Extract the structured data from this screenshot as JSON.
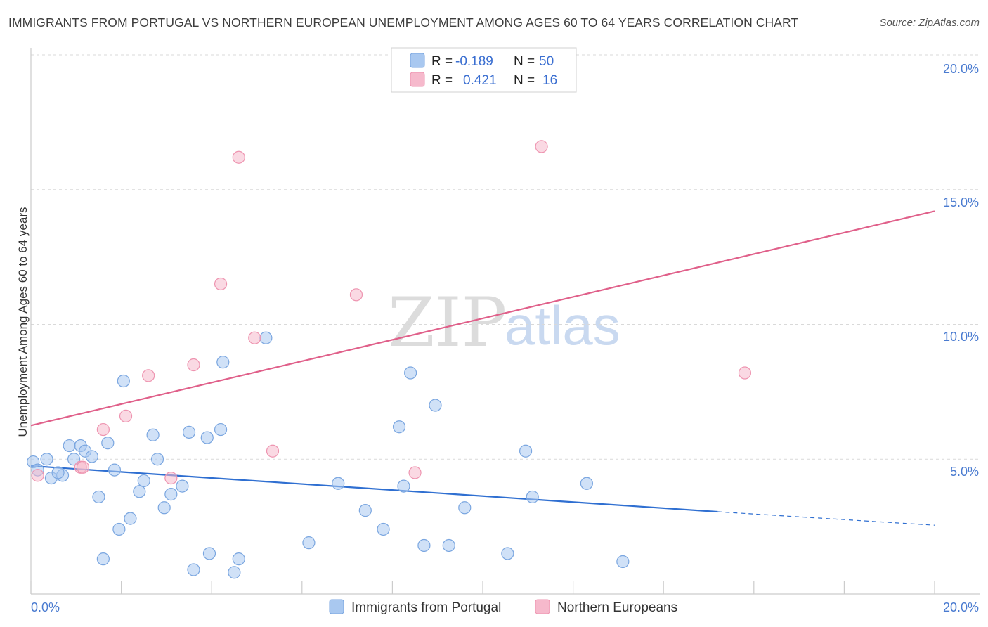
{
  "title": "IMMIGRANTS FROM PORTUGAL VS NORTHERN EUROPEAN UNEMPLOYMENT AMONG AGES 60 TO 64 YEARS CORRELATION CHART",
  "source": "Source: ZipAtlas.com",
  "watermark": {
    "part1": "ZIP",
    "part2": "atlas"
  },
  "colors": {
    "blue_fill": "#a9c8f0",
    "blue_stroke": "#7aa6e0",
    "blue_line": "#2f6fd1",
    "pink_fill": "#f6b9cc",
    "pink_stroke": "#ee94b0",
    "pink_line": "#e0608a",
    "axis_text": "#4a7bd0",
    "grid": "#d9d9d9"
  },
  "legend": {
    "rows": [
      {
        "r_label": "R =",
        "r_value": "-0.189",
        "n_label": "N =",
        "n_value": "50",
        "series": "blue"
      },
      {
        "r_label": "R =",
        "r_value": "0.421",
        "n_label": "N =",
        "n_value": "16",
        "series": "pink"
      }
    ]
  },
  "bottom_legend": [
    "Immigrants from Portugal",
    "Northern Europeans"
  ],
  "chart_data": {
    "type": "scatter",
    "title": "IMMIGRANTS FROM PORTUGAL VS NORTHERN EUROPEAN UNEMPLOYMENT AMONG AGES 60 TO 64 YEARS CORRELATION CHART",
    "xlabel": "",
    "ylabel": "Unemployment Among Ages 60 to 64 years",
    "xlim": [
      0,
      20
    ],
    "ylim": [
      0,
      20
    ],
    "x_tick_labels": [
      "0.0%",
      "20.0%"
    ],
    "y_tick_labels": [
      "5.0%",
      "10.0%",
      "15.0%",
      "20.0%"
    ],
    "y_ticks": [
      5,
      10,
      15,
      20
    ],
    "grid": true,
    "legend_position": "top-center",
    "series": [
      {
        "name": "Immigrants from Portugal",
        "color": "#a9c8f0",
        "points": [
          [
            0.05,
            4.9
          ],
          [
            0.15,
            4.6
          ],
          [
            0.35,
            5.0
          ],
          [
            0.45,
            4.3
          ],
          [
            0.7,
            4.4
          ],
          [
            0.85,
            5.5
          ],
          [
            0.95,
            5.0
          ],
          [
            1.1,
            5.5
          ],
          [
            1.2,
            5.3
          ],
          [
            1.35,
            5.1
          ],
          [
            1.5,
            3.6
          ],
          [
            1.6,
            1.3
          ],
          [
            1.7,
            5.6
          ],
          [
            1.85,
            4.6
          ],
          [
            1.95,
            2.4
          ],
          [
            2.05,
            7.9
          ],
          [
            2.2,
            2.8
          ],
          [
            2.4,
            3.8
          ],
          [
            2.5,
            4.2
          ],
          [
            2.7,
            5.9
          ],
          [
            2.8,
            5.0
          ],
          [
            2.95,
            3.2
          ],
          [
            3.1,
            3.7
          ],
          [
            3.35,
            4.0
          ],
          [
            3.5,
            6.0
          ],
          [
            3.6,
            0.9
          ],
          [
            3.9,
            5.8
          ],
          [
            3.95,
            1.5
          ],
          [
            4.2,
            6.1
          ],
          [
            4.25,
            8.6
          ],
          [
            4.5,
            0.8
          ],
          [
            4.6,
            1.3
          ],
          [
            5.2,
            9.5
          ],
          [
            6.15,
            1.9
          ],
          [
            6.8,
            4.1
          ],
          [
            7.4,
            3.1
          ],
          [
            7.8,
            2.4
          ],
          [
            8.15,
            6.2
          ],
          [
            8.25,
            4.0
          ],
          [
            8.4,
            8.2
          ],
          [
            8.7,
            1.8
          ],
          [
            8.95,
            7.0
          ],
          [
            9.25,
            1.8
          ],
          [
            9.6,
            3.2
          ],
          [
            10.55,
            1.5
          ],
          [
            10.95,
            5.3
          ],
          [
            11.1,
            3.6
          ],
          [
            12.3,
            4.1
          ],
          [
            13.1,
            1.2
          ],
          [
            0.6,
            4.5
          ]
        ],
        "trend": {
          "x": [
            0,
            15.2
          ],
          "y": [
            4.75,
            3.05
          ],
          "dashed_extension": {
            "x": [
              15.2,
              20
            ],
            "y": [
              3.05,
              2.55
            ]
          }
        }
      },
      {
        "name": "Northern Europeans",
        "color": "#f6b9cc",
        "points": [
          [
            0.15,
            4.4
          ],
          [
            1.1,
            4.7
          ],
          [
            1.15,
            4.7
          ],
          [
            1.6,
            6.1
          ],
          [
            2.1,
            6.6
          ],
          [
            2.6,
            8.1
          ],
          [
            3.1,
            4.3
          ],
          [
            3.6,
            8.5
          ],
          [
            4.2,
            11.5
          ],
          [
            4.6,
            16.2
          ],
          [
            4.95,
            9.5
          ],
          [
            5.35,
            5.3
          ],
          [
            7.2,
            11.1
          ],
          [
            8.5,
            4.5
          ],
          [
            11.3,
            16.6
          ],
          [
            15.8,
            8.2
          ]
        ],
        "trend": {
          "x": [
            0,
            20
          ],
          "y": [
            6.25,
            14.2
          ]
        }
      }
    ]
  }
}
